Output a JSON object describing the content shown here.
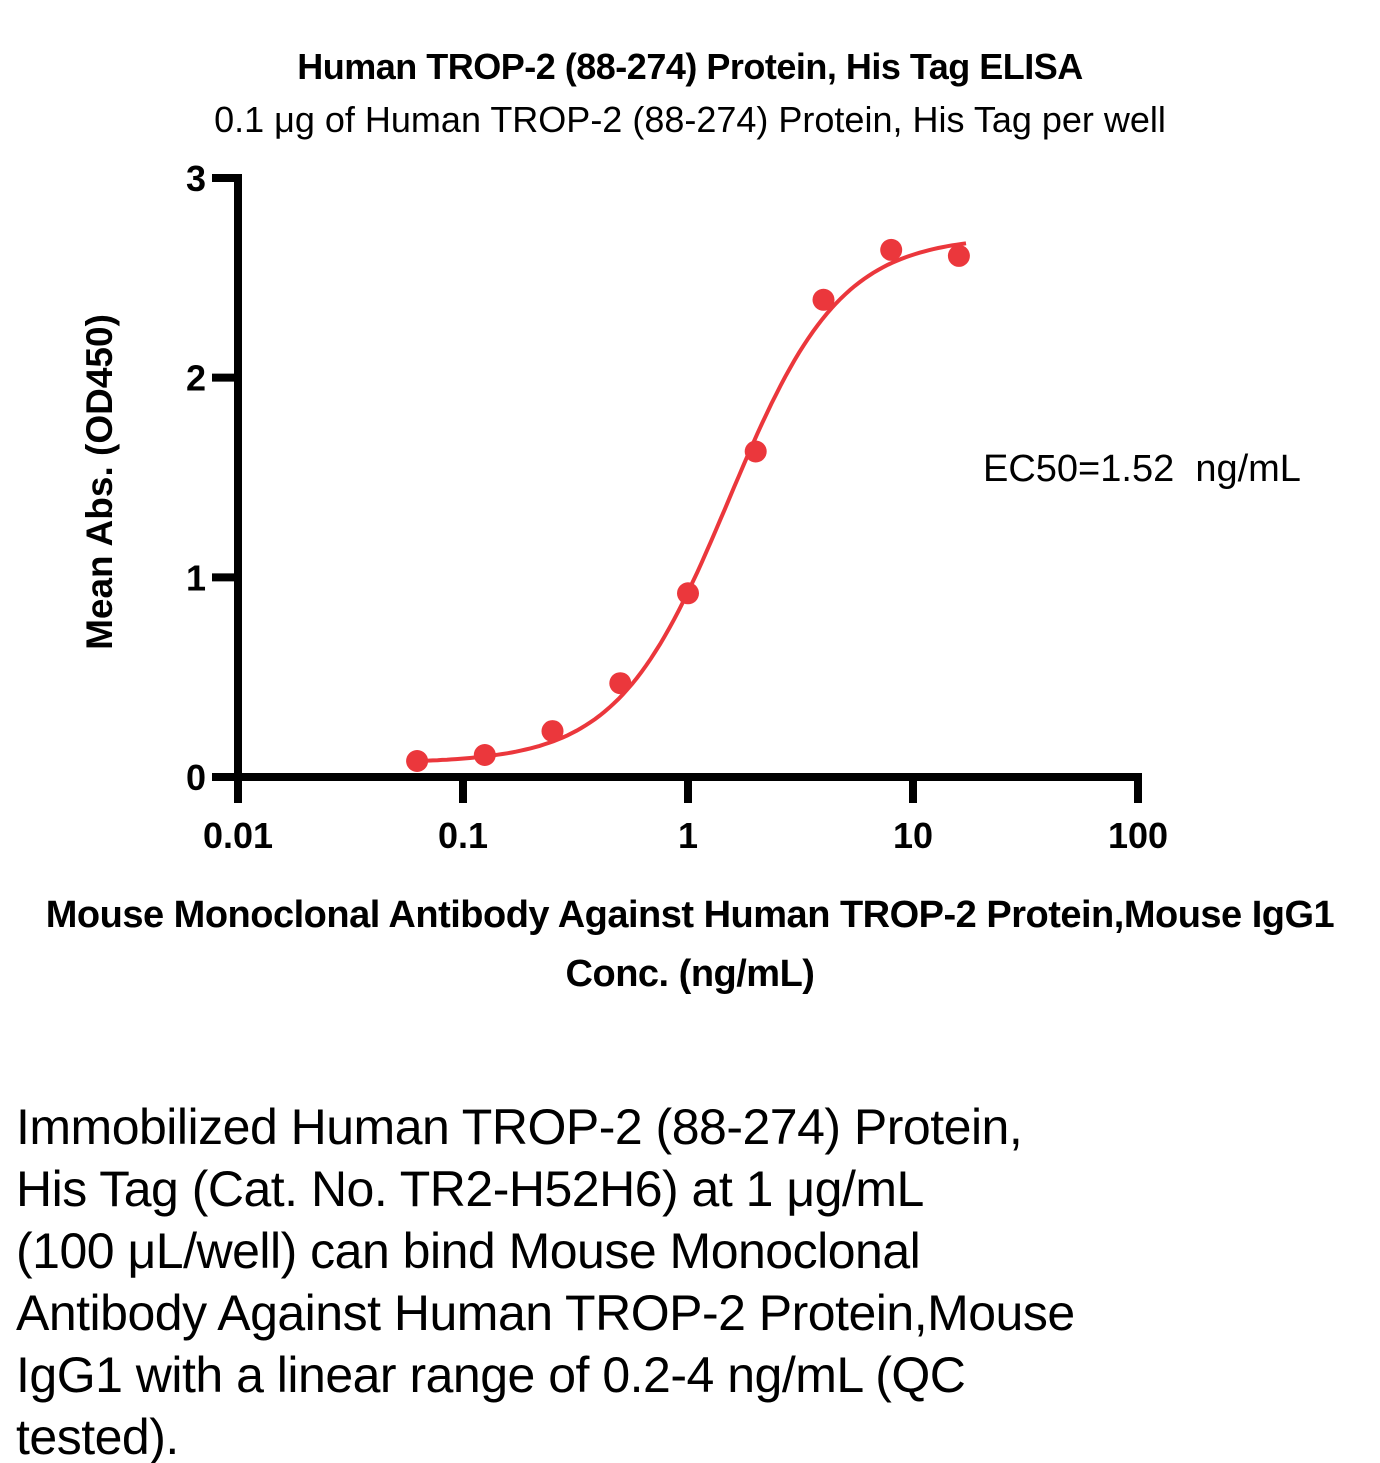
{
  "colors": {
    "point_color": "#EB373C",
    "curve_color": "#EB373C",
    "axis_color": "#000000",
    "text_color": "#000000",
    "background": "#FFFFFF"
  },
  "chart_data": {
    "type": "scatter",
    "title": "Human TROP-2 (88-274) Protein, His Tag ELISA",
    "subtitle": "0.1 μg of Human TROP-2 (88-274) Protein, His Tag per well",
    "ylabel": "Mean Abs. (OD450)",
    "xlabel_lines": [
      "Mouse Monoclonal Antibody Against Human TROP-2 Protein,Mouse IgG1",
      "Conc. (ng/mL)"
    ],
    "x_scale": "log10",
    "xlim": [
      0.01,
      100
    ],
    "ylim": [
      0,
      3
    ],
    "x_ticks": [
      0.01,
      0.1,
      1,
      10,
      100
    ],
    "x_tick_labels": [
      "0.01",
      "0.1",
      "1",
      "10",
      "100"
    ],
    "y_ticks": [
      0,
      1,
      2,
      3
    ],
    "y_tick_labels": [
      "0",
      "1",
      "2",
      "3"
    ],
    "grid": false,
    "legend": "none",
    "series": [
      {
        "x": [
          0.0625,
          0.125,
          0.25,
          0.5,
          1,
          2,
          4,
          8,
          16
        ],
        "y": [
          0.08,
          0.11,
          0.23,
          0.47,
          0.92,
          1.63,
          2.39,
          2.64,
          2.61
        ]
      }
    ],
    "fit_curve": {
      "model": "4PL",
      "bottom": 0.07,
      "top": 2.71,
      "ec50": 1.52,
      "hill": 1.75,
      "x_start": 0.058,
      "x_end": 17.2
    },
    "annotation": "EC50=1.52  ng/mL",
    "ec50_value": "1.52",
    "ec50_unit": "ng/mL"
  },
  "caption": {
    "lines": [
      "Immobilized Human TROP-2 (88-274) Protein,",
      "His Tag (Cat. No. TR2-H52H6) at 1 μg/mL",
      "(100 μL/well) can bind Mouse Monoclonal",
      "Antibody Against Human TROP-2 Protein,Mouse",
      "IgG1 with a linear range of 0.2-4 ng/mL (QC",
      "tested)."
    ]
  }
}
